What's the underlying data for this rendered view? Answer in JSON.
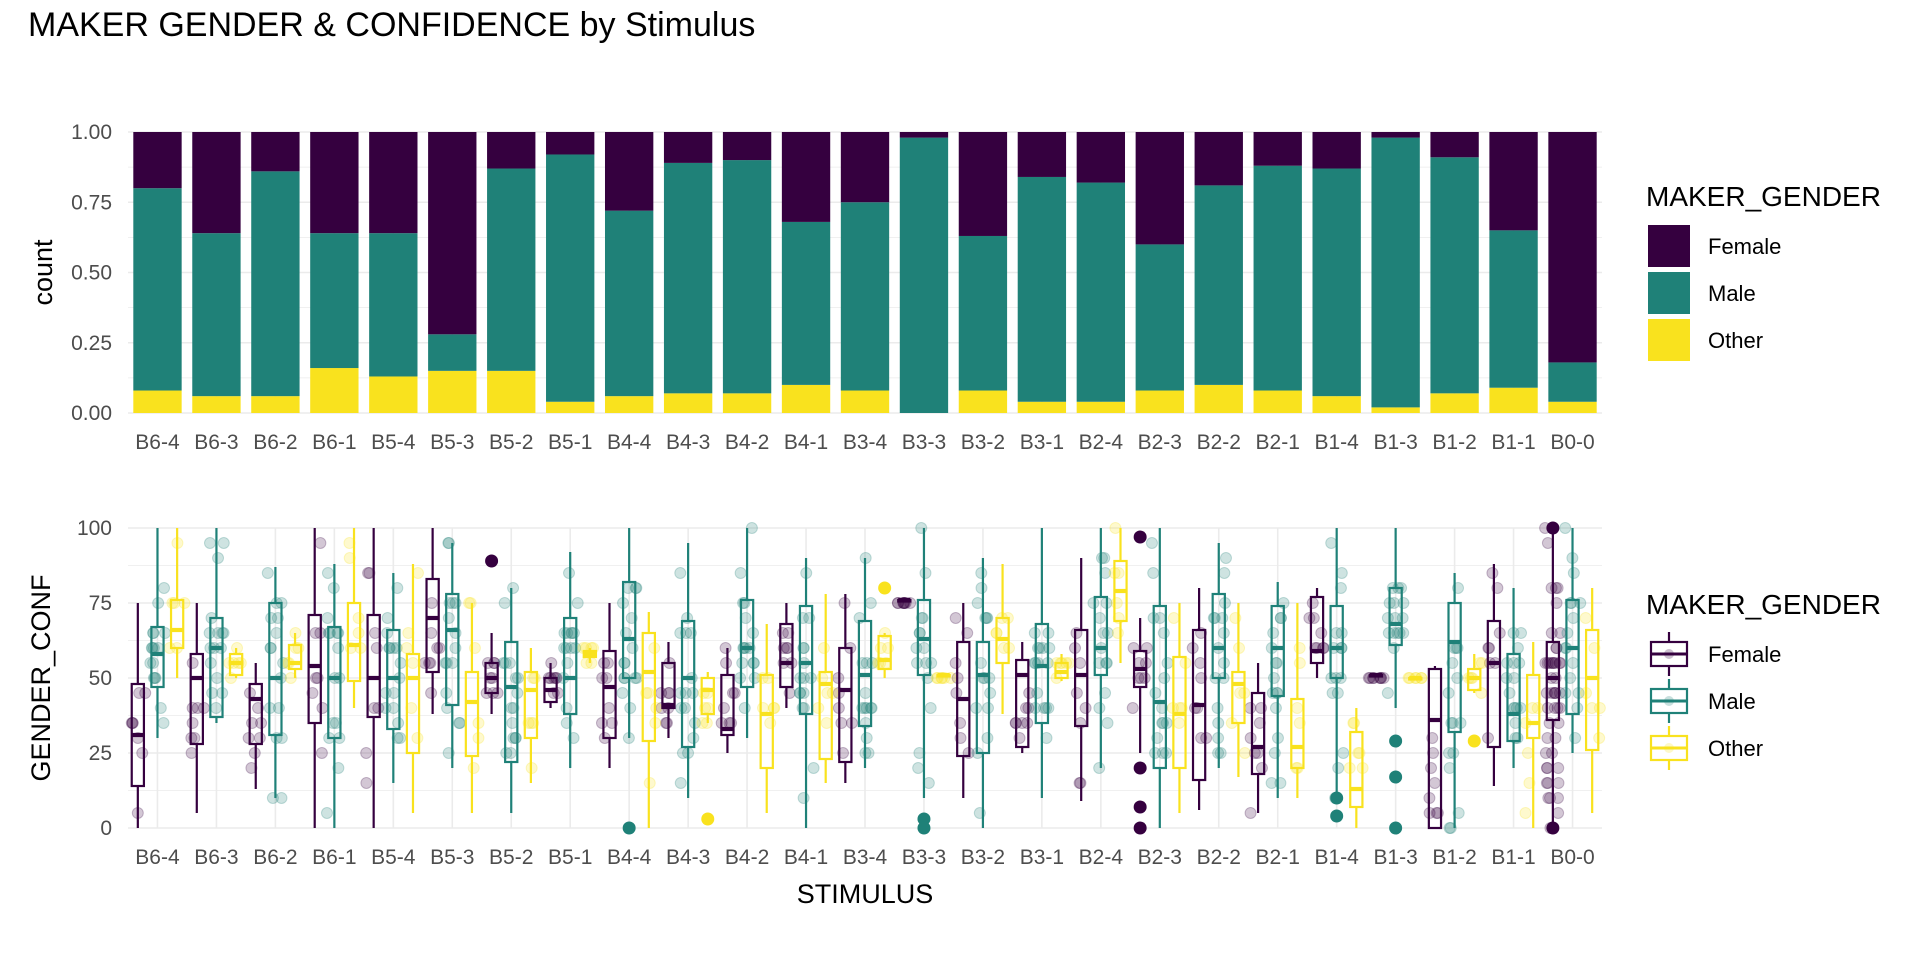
{
  "title": "MAKER GENDER & CONFIDENCE by Stimulus",
  "colors": {
    "Female": "#35003f",
    "Male": "#1f8178",
    "Other": "#f9e21e"
  },
  "chart_data": [
    {
      "type": "bar",
      "stacked": true,
      "position": "fill",
      "xlabel": "",
      "ylabel": "count",
      "ylim": [
        0,
        1
      ],
      "yticks": [
        "0.00",
        "0.25",
        "0.50",
        "0.75",
        "1.00"
      ],
      "categories": [
        "B6-4",
        "B6-3",
        "B6-2",
        "B6-1",
        "B5-4",
        "B5-3",
        "B5-2",
        "B5-1",
        "B4-4",
        "B4-3",
        "B4-2",
        "B4-1",
        "B3-4",
        "B3-3",
        "B3-2",
        "B3-1",
        "B2-4",
        "B2-3",
        "B2-2",
        "B2-1",
        "B1-4",
        "B1-3",
        "B1-2",
        "B1-1",
        "B0-0"
      ],
      "series": [
        {
          "name": "Other",
          "values": [
            0.08,
            0.06,
            0.06,
            0.16,
            0.13,
            0.15,
            0.15,
            0.04,
            0.06,
            0.07,
            0.07,
            0.1,
            0.08,
            0.0,
            0.08,
            0.04,
            0.04,
            0.08,
            0.1,
            0.08,
            0.06,
            0.02,
            0.07,
            0.09,
            0.04
          ]
        },
        {
          "name": "Male",
          "values": [
            0.72,
            0.58,
            0.8,
            0.48,
            0.51,
            0.13,
            0.72,
            0.88,
            0.66,
            0.82,
            0.83,
            0.58,
            0.67,
            0.98,
            0.55,
            0.8,
            0.78,
            0.52,
            0.71,
            0.8,
            0.81,
            0.96,
            0.84,
            0.56,
            0.14
          ]
        },
        {
          "name": "Female",
          "values": [
            0.2,
            0.36,
            0.14,
            0.36,
            0.36,
            0.72,
            0.13,
            0.08,
            0.28,
            0.11,
            0.1,
            0.32,
            0.25,
            0.02,
            0.37,
            0.16,
            0.18,
            0.4,
            0.19,
            0.12,
            0.13,
            0.02,
            0.09,
            0.35,
            0.82
          ]
        }
      ],
      "legend": {
        "title": "MAKER_GENDER",
        "entries": [
          "Female",
          "Male",
          "Other"
        ],
        "position": "right"
      },
      "grid": true
    },
    {
      "type": "boxplot",
      "xlabel": "STIMULUS",
      "ylabel": "GENDER_CONF",
      "ylim": [
        0,
        100
      ],
      "yticks": [
        "0",
        "25",
        "50",
        "75",
        "100"
      ],
      "categories": [
        "B6-4",
        "B6-3",
        "B6-2",
        "B6-1",
        "B5-4",
        "B5-3",
        "B5-2",
        "B5-1",
        "B4-4",
        "B4-3",
        "B4-2",
        "B4-1",
        "B3-4",
        "B3-3",
        "B3-2",
        "B3-1",
        "B2-4",
        "B2-3",
        "B2-2",
        "B2-1",
        "B1-4",
        "B1-3",
        "B1-2",
        "B1-1",
        "B0-0"
      ],
      "series": [
        {
          "name": "Female",
          "boxes": [
            [
              0,
              14,
              31,
              48,
              75
            ],
            [
              5,
              28,
              50,
              58,
              75
            ],
            [
              13,
              28,
              43,
              48,
              55
            ],
            [
              0,
              35,
              54,
              71,
              100
            ],
            [
              0,
              37,
              50,
              71,
              100
            ],
            [
              38,
              52,
              70,
              83,
              100
            ],
            [
              38,
              45,
              50,
              55,
              65
            ],
            [
              40,
              42,
              46,
              50,
              55
            ],
            [
              20,
              30,
              47,
              59,
              75
            ],
            [
              30,
              40,
              41,
              55,
              62
            ],
            [
              25,
              31,
              33,
              51,
              60
            ],
            [
              40,
              47,
              55,
              68,
              75
            ],
            [
              15,
              22,
              46,
              60,
              78
            ],
            [
              76,
              76,
              76,
              76,
              76
            ],
            [
              10,
              24,
              43,
              62,
              75
            ],
            [
              25,
              27,
              51,
              56,
              62
            ],
            [
              9,
              34,
              51,
              66,
              90
            ],
            [
              25,
              47,
              53,
              59,
              70
            ],
            [
              6,
              16,
              41,
              66,
              80
            ],
            [
              5,
              18,
              27,
              45,
              55
            ],
            [
              50,
              55,
              59,
              77,
              80
            ],
            [
              51,
              51,
              51,
              51,
              51
            ],
            [
              0,
              0,
              36,
              53,
              54
            ],
            [
              14,
              27,
              55,
              69,
              88
            ],
            [
              0,
              36,
              50,
              62,
              100
            ]
          ]
        },
        {
          "name": "Male",
          "boxes": [
            [
              30,
              47,
              58,
              67,
              100
            ],
            [
              35,
              37,
              60,
              70,
              100
            ],
            [
              10,
              31,
              50,
              75,
              87
            ],
            [
              0,
              30,
              50,
              67,
              88
            ],
            [
              15,
              33,
              50,
              66,
              85
            ],
            [
              20,
              41,
              66,
              78,
              95
            ],
            [
              5,
              22,
              47,
              62,
              80
            ],
            [
              20,
              38,
              50,
              70,
              92
            ],
            [
              30,
              50,
              63,
              82,
              100
            ],
            [
              10,
              27,
              50,
              69,
              95
            ],
            [
              30,
              47,
              60,
              76,
              100
            ],
            [
              0,
              38,
              55,
              74,
              90
            ],
            [
              20,
              34,
              51,
              69,
              90
            ],
            [
              10,
              51,
              63,
              76,
              100
            ],
            [
              0,
              25,
              51,
              62,
              90
            ],
            [
              10,
              35,
              54,
              68,
              100
            ],
            [
              20,
              51,
              60,
              77,
              100
            ],
            [
              0,
              20,
              42,
              74,
              100
            ],
            [
              20,
              50,
              60,
              78,
              95
            ],
            [
              10,
              44,
              60,
              74,
              82
            ],
            [
              10,
              50,
              60,
              74,
              100
            ],
            [
              40,
              61,
              68,
              80,
              100
            ],
            [
              0,
              32,
              62,
              75,
              85
            ],
            [
              20,
              29,
              38,
              58,
              80
            ],
            [
              25,
              38,
              60,
              76,
              100
            ]
          ]
        },
        {
          "name": "Other",
          "boxes": [
            [
              50,
              60,
              66,
              76,
              100
            ],
            [
              50,
              51,
              55,
              58,
              60
            ],
            [
              50,
              53,
              55,
              61,
              65
            ],
            [
              40,
              49,
              61,
              75,
              100
            ],
            [
              5,
              25,
              50,
              58,
              88
            ],
            [
              5,
              24,
              42,
              52,
              75
            ],
            [
              15,
              30,
              46,
              52,
              60
            ],
            [
              55,
              57,
              58,
              59,
              60
            ],
            [
              0,
              29,
              52,
              65,
              72
            ],
            [
              35,
              38,
              46,
              50,
              52
            ],
            [
              5,
              20,
              38,
              51,
              68
            ],
            [
              15,
              23,
              48,
              52,
              78
            ],
            [
              50,
              53,
              56,
              64,
              65
            ],
            [
              51,
              51,
              51,
              51,
              51
            ],
            [
              38,
              55,
              63,
              70,
              88
            ],
            [
              49,
              50,
              52,
              55,
              58
            ],
            [
              55,
              69,
              79,
              89,
              100
            ],
            [
              5,
              20,
              38,
              57,
              75
            ],
            [
              17,
              35,
              48,
              52,
              75
            ],
            [
              10,
              20,
              27,
              43,
              75
            ],
            [
              0,
              7,
              13,
              32,
              40
            ],
            [
              50,
              50,
              50,
              50,
              50
            ],
            [
              45,
              46,
              50,
              53,
              58
            ],
            [
              0,
              30,
              35,
              51,
              62
            ],
            [
              5,
              26,
              50,
              66,
              80
            ]
          ]
        }
      ],
      "outliers": [
        {
          "category": "B5-2",
          "series": "Female",
          "y": 89
        },
        {
          "category": "B4-4",
          "series": "Male",
          "y": 0
        },
        {
          "category": "B4-3",
          "series": "Other",
          "y": 3
        },
        {
          "category": "B3-4",
          "series": "Other",
          "y": 80
        },
        {
          "category": "B3-3",
          "series": "Male",
          "y": 3
        },
        {
          "category": "B3-3",
          "series": "Male",
          "y": 0
        },
        {
          "category": "B2-3",
          "series": "Female",
          "y": 97
        },
        {
          "category": "B2-3",
          "series": "Female",
          "y": 20
        },
        {
          "category": "B2-3",
          "series": "Female",
          "y": 7
        },
        {
          "category": "B2-3",
          "series": "Female",
          "y": 0
        },
        {
          "category": "B1-4",
          "series": "Male",
          "y": 10
        },
        {
          "category": "B1-4",
          "series": "Male",
          "y": 4
        },
        {
          "category": "B1-3",
          "series": "Male",
          "y": 29
        },
        {
          "category": "B1-3",
          "series": "Male",
          "y": 17
        },
        {
          "category": "B1-3",
          "series": "Male",
          "y": 0
        },
        {
          "category": "B1-2",
          "series": "Other",
          "y": 29
        },
        {
          "category": "B0-0",
          "series": "Female",
          "y": 100
        },
        {
          "category": "B0-0",
          "series": "Female",
          "y": 0
        }
      ],
      "jittered_points": true,
      "legend": {
        "title": "MAKER_GENDER",
        "entries": [
          "Female",
          "Male",
          "Other"
        ],
        "position": "right"
      },
      "grid": true
    }
  ]
}
